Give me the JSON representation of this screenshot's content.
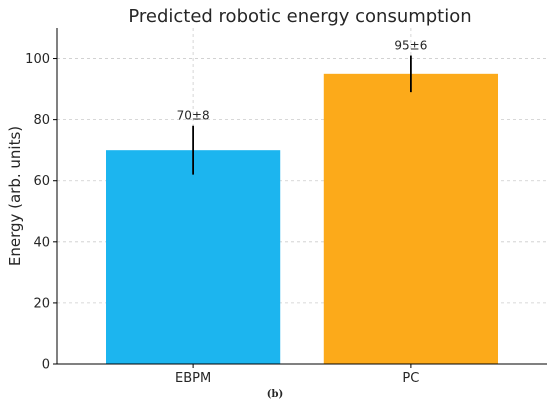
{
  "caption": "(b)",
  "chart_data": {
    "type": "bar",
    "title": "Predicted robotic energy consumption",
    "xlabel": "",
    "ylabel": "Energy (arb. units)",
    "categories": [
      "EBPM",
      "PC"
    ],
    "values": [
      70,
      95
    ],
    "errors": [
      8,
      6
    ],
    "value_labels": [
      "70±8",
      "95±6"
    ],
    "colors": [
      "#1cb5ef",
      "#fcaa1a"
    ],
    "ylim": [
      0,
      110
    ],
    "yticks": [
      0,
      20,
      40,
      60,
      80,
      100
    ],
    "grid": true,
    "legend": "none"
  }
}
